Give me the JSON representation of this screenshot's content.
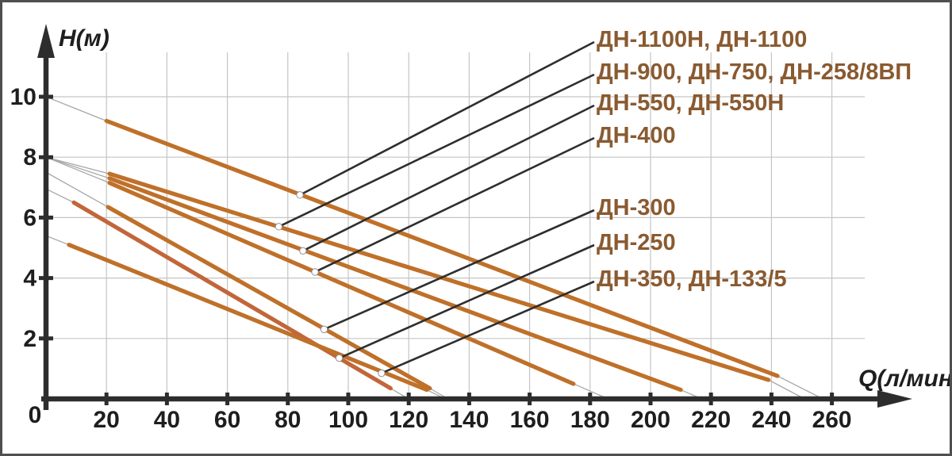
{
  "page": {
    "background": "#ffffff",
    "border_color": "#4f4f4f"
  },
  "chart_data": {
    "type": "line",
    "title": "",
    "xlabel": "Q(л/мин)",
    "ylabel": "H(м)",
    "origin_label": "0",
    "x_ticks": [
      20,
      40,
      60,
      80,
      100,
      120,
      140,
      160,
      180,
      200,
      220,
      240,
      260
    ],
    "y_ticks": [
      2,
      4,
      6,
      8,
      10
    ],
    "xlim": [
      0,
      280
    ],
    "ylim": [
      0,
      11.5
    ],
    "grid": true,
    "legend_position": "callout-labels-right",
    "axis_color": "#2d2d2d",
    "grid_color": "#c5c5c5",
    "tick_label_color": "#1e1e1e",
    "series_label_color": "#8a5a30",
    "callout_leader_color": "#2e2e2e",
    "faint_extension_color": "#a8a8a8",
    "callout_dot_color": "#ffffff",
    "series": [
      {
        "name": "ДН-1100Н, ДН-1100",
        "color": "#bf7029",
        "axis_start": [
          0,
          10
        ],
        "solid_segment": [
          [
            20,
            9.2
          ],
          [
            242,
            0.76
          ]
        ],
        "axis_end": [
          257,
          0
        ],
        "callout_point": [
          84,
          6.75
        ]
      },
      {
        "name": "ДН-900, ДН-750, ДН-258/8ВП",
        "color": "#bf7029",
        "axis_start": [
          0,
          8
        ],
        "solid_segment": [
          [
            21,
            7.45
          ],
          [
            239,
            0.63
          ]
        ],
        "axis_end": [
          251,
          0
        ],
        "callout_point": [
          77,
          5.7
        ]
      },
      {
        "name": "ДН-550, ДН-550Н",
        "color": "#bf7029",
        "axis_start": [
          0,
          8
        ],
        "solid_segment": [
          [
            21,
            7.3
          ],
          [
            210,
            0.3
          ]
        ],
        "axis_end": [
          217,
          0
        ],
        "callout_point": [
          85,
          4.9
        ]
      },
      {
        "name": "ДН-400",
        "color": "#bf7029",
        "axis_start": [
          0,
          8
        ],
        "solid_segment": [
          [
            21,
            7.15
          ],
          [
            174.5,
            0.5
          ]
        ],
        "axis_end": [
          186,
          0
        ],
        "callout_point": [
          89,
          4.2
        ]
      },
      {
        "name": "ДН-300",
        "color": "#bf7029",
        "axis_start": [
          0,
          7.5
        ],
        "solid_segment": [
          [
            20.5,
            6.35
          ],
          [
            127,
            0.35
          ]
        ],
        "axis_end": [
          133,
          0
        ],
        "callout_point": [
          92,
          2.3
        ]
      },
      {
        "name": "ДН-250",
        "color": "#c2663a",
        "axis_start": [
          0,
          6.95
        ],
        "solid_segment": [
          [
            9.2,
            6.5
          ],
          [
            114,
            0.35
          ]
        ],
        "axis_end": [
          120,
          0
        ],
        "callout_point": [
          97,
          1.35
        ]
      },
      {
        "name": "ДН-350, ДН-133/5",
        "color": "#bf7029",
        "axis_start": [
          0,
          5.4
        ],
        "solid_segment": [
          [
            7.6,
            5.1
          ],
          [
            126,
            0.3
          ]
        ],
        "axis_end": [
          132,
          0
        ],
        "callout_point": [
          111,
          0.85
        ]
      }
    ]
  }
}
